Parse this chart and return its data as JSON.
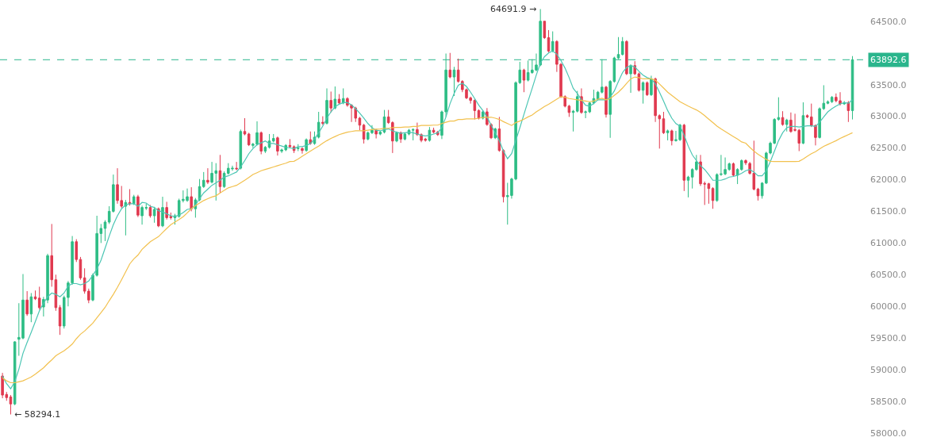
{
  "chart_data": {
    "type": "candlestick",
    "categories": [
      null,
      null,
      null,
      null,
      null,
      null,
      null,
      null,
      null,
      null,
      null,
      null,
      null,
      null,
      null,
      null,
      null,
      null,
      null,
      null,
      null,
      null,
      null,
      null,
      null,
      null,
      null,
      null,
      null,
      null,
      null,
      null,
      null,
      null,
      null,
      null,
      null,
      null,
      null,
      null,
      null,
      null,
      null,
      null,
      null,
      null,
      null,
      null,
      null,
      null,
      null,
      null,
      null,
      null,
      null,
      null,
      null,
      null,
      null,
      null,
      null,
      null,
      null,
      null,
      null,
      null,
      null,
      null,
      null,
      null,
      null,
      null,
      null,
      null,
      null,
      null,
      null,
      null,
      null,
      null,
      null,
      null,
      null,
      null,
      null,
      null,
      null,
      null,
      null,
      null,
      null,
      null,
      null,
      null,
      null,
      null,
      null,
      null,
      null,
      null,
      null,
      null,
      null,
      null,
      null,
      null,
      null,
      null,
      null,
      null,
      null,
      null,
      null,
      null,
      null,
      null,
      null,
      null,
      null,
      null,
      null,
      null,
      null,
      null,
      null,
      null,
      null,
      null,
      null,
      null,
      null,
      null,
      null,
      null,
      null,
      null,
      null,
      null,
      null,
      null,
      null,
      null,
      null,
      null,
      null,
      null,
      null,
      null,
      null,
      null,
      null,
      null,
      null,
      null,
      null,
      null,
      null,
      null,
      null,
      null,
      null,
      null,
      null,
      null,
      null,
      null,
      null,
      null,
      null,
      null,
      null,
      null,
      null,
      null,
      null,
      null,
      null,
      null,
      null,
      null,
      null,
      null,
      null,
      null,
      null,
      null,
      null,
      null,
      null,
      null,
      null,
      null,
      null,
      null,
      null,
      null,
      null,
      null,
      null,
      null,
      null,
      null,
      null,
      null,
      null,
      null,
      null,
      null
    ],
    "ohlc": [
      [
        58900,
        58950,
        58550,
        58600
      ],
      [
        58610,
        58650,
        58510,
        58560
      ],
      [
        58570,
        58600,
        58294.1,
        58460
      ],
      [
        58460,
        59450,
        58440,
        59440
      ],
      [
        59480,
        60050,
        59220,
        59510
      ],
      [
        59500,
        60510,
        59480,
        60100
      ],
      [
        60100,
        60240,
        59850,
        59880
      ],
      [
        59880,
        60210,
        59750,
        60150
      ],
      [
        60150,
        60250,
        60100,
        60120
      ],
      [
        60130,
        60310,
        59950,
        59980
      ],
      [
        59990,
        60150,
        59840,
        60110
      ],
      [
        60100,
        60830,
        60050,
        60800
      ],
      [
        60800,
        61300,
        60310,
        60420
      ],
      [
        60420,
        60500,
        59930,
        59980
      ],
      [
        59980,
        60020,
        59550,
        59690
      ],
      [
        59690,
        60170,
        59650,
        60140
      ],
      [
        60140,
        60400,
        60000,
        60370
      ],
      [
        60370,
        61110,
        60340,
        61020
      ],
      [
        61020,
        61060,
        60700,
        60740
      ],
      [
        60740,
        60780,
        60420,
        60450
      ],
      [
        60450,
        60600,
        60200,
        60240
      ],
      [
        60240,
        60280,
        60050,
        60100
      ],
      [
        60100,
        60520,
        60080,
        60490
      ],
      [
        60490,
        61430,
        60470,
        61150
      ],
      [
        61150,
        61300,
        61000,
        61230
      ],
      [
        61230,
        61360,
        61030,
        61330
      ],
      [
        61330,
        61580,
        61300,
        61500
      ],
      [
        61500,
        62080,
        61480,
        61920
      ],
      [
        61920,
        62180,
        61620,
        61670
      ],
      [
        61670,
        61900,
        61550,
        61580
      ],
      [
        61580,
        61680,
        61120,
        61640
      ],
      [
        61640,
        61850,
        61590,
        61620
      ],
      [
        61620,
        61760,
        61600,
        61730
      ],
      [
        61730,
        61760,
        61410,
        61440
      ],
      [
        61430,
        61590,
        61290,
        61560
      ],
      [
        61550,
        61620,
        61520,
        61560
      ],
      [
        61560,
        61600,
        61400,
        61430
      ],
      [
        61430,
        61570,
        61320,
        61530
      ],
      [
        61540,
        61560,
        61250,
        61270
      ],
      [
        61270,
        61730,
        61250,
        61560
      ],
      [
        61560,
        61650,
        61370,
        61400
      ],
      [
        61420,
        61480,
        61370,
        61400
      ],
      [
        61400,
        61460,
        61290,
        61430
      ],
      [
        61420,
        61700,
        61400,
        61670
      ],
      [
        61670,
        61830,
        61640,
        61690
      ],
      [
        61670,
        61860,
        61650,
        61730
      ],
      [
        61730,
        61880,
        61500,
        61540
      ],
      [
        61540,
        61710,
        61400,
        61680
      ],
      [
        61680,
        62010,
        61660,
        61890
      ],
      [
        61890,
        62120,
        61870,
        61990
      ],
      [
        61990,
        62180,
        61930,
        61960
      ],
      [
        61960,
        62280,
        61940,
        62100
      ],
      [
        62100,
        62260,
        61670,
        62140
      ],
      [
        62140,
        62390,
        61790,
        61890
      ],
      [
        61890,
        62130,
        61870,
        62100
      ],
      [
        62100,
        62260,
        62080,
        62180
      ],
      [
        62170,
        62220,
        62140,
        62180
      ],
      [
        62180,
        62280,
        62150,
        62170
      ],
      [
        62180,
        62790,
        62160,
        62760
      ],
      [
        62760,
        62970,
        62700,
        62720
      ],
      [
        62720,
        62740,
        62530,
        62550
      ],
      [
        62540,
        62580,
        62500,
        62560
      ],
      [
        62560,
        62920,
        62540,
        62740
      ],
      [
        62740,
        62760,
        62400,
        62450
      ],
      [
        62450,
        62530,
        62420,
        62510
      ],
      [
        62510,
        62720,
        62490,
        62610
      ],
      [
        62610,
        62720,
        62590,
        62650
      ],
      [
        62660,
        62680,
        62380,
        62450
      ],
      [
        62450,
        62490,
        62420,
        62470
      ],
      [
        62470,
        62560,
        62450,
        62540
      ],
      [
        62540,
        62640,
        62500,
        62520
      ],
      [
        62520,
        62540,
        62420,
        62460
      ],
      [
        62490,
        62560,
        62450,
        62500
      ],
      [
        62490,
        62510,
        62410,
        62460
      ],
      [
        62460,
        62650,
        62440,
        62630
      ],
      [
        62630,
        62760,
        62550,
        62570
      ],
      [
        62570,
        62760,
        62550,
        62670
      ],
      [
        62670,
        63070,
        62650,
        62905
      ],
      [
        62905,
        63000,
        62860,
        62890
      ],
      [
        62890,
        63440,
        62870,
        63250
      ],
      [
        63250,
        63390,
        63060,
        63130
      ],
      [
        63130,
        63470,
        63110,
        63270
      ],
      [
        63270,
        63350,
        63190,
        63210
      ],
      [
        63210,
        63440,
        63190,
        63280
      ],
      [
        63280,
        63300,
        63150,
        63175
      ],
      [
        63175,
        63190,
        62910,
        63130
      ],
      [
        63130,
        63150,
        62910,
        62970
      ],
      [
        62970,
        62990,
        62780,
        62860
      ],
      [
        62860,
        62880,
        62570,
        62640
      ],
      [
        62640,
        62760,
        62620,
        62740
      ],
      [
        62740,
        62860,
        62720,
        62780
      ],
      [
        62780,
        62800,
        62650,
        62720
      ],
      [
        62720,
        62770,
        62700,
        62750
      ],
      [
        62750,
        63100,
        62730,
        62990
      ],
      [
        62990,
        63100,
        62880,
        62900
      ],
      [
        62900,
        62920,
        62420,
        62610
      ],
      [
        62610,
        62760,
        62590,
        62740
      ],
      [
        62740,
        62760,
        62580,
        62640
      ],
      [
        62640,
        62740,
        62620,
        62720
      ],
      [
        62720,
        62800,
        62700,
        62780
      ],
      [
        62780,
        62810,
        62620,
        62790
      ],
      [
        62790,
        62900,
        62690,
        62710
      ],
      [
        62710,
        62730,
        62590,
        62620
      ],
      [
        62640,
        62660,
        62600,
        62620
      ],
      [
        62620,
        62830,
        62600,
        62780
      ],
      [
        62780,
        62820,
        62730,
        62750
      ],
      [
        62750,
        62770,
        62690,
        62710
      ],
      [
        62700,
        63090,
        62640,
        63070
      ],
      [
        63070,
        63990,
        62990,
        63730
      ],
      [
        63730,
        64000,
        63600,
        63620
      ],
      [
        63620,
        63780,
        63320,
        63730
      ],
      [
        63730,
        63910,
        63530,
        63550
      ],
      [
        63550,
        63570,
        63380,
        63420
      ],
      [
        63420,
        63440,
        63270,
        63290
      ],
      [
        63290,
        63310,
        63200,
        63250
      ],
      [
        63250,
        63270,
        62950,
        63090
      ],
      [
        63090,
        63110,
        62950,
        62970
      ],
      [
        62970,
        63090,
        62950,
        63070
      ],
      [
        63070,
        63130,
        62850,
        62870
      ],
      [
        62870,
        62890,
        62640,
        62660
      ],
      [
        62660,
        62820,
        62640,
        62800
      ],
      [
        62800,
        62990,
        62440,
        62460
      ],
      [
        62460,
        62480,
        61640,
        61730
      ],
      [
        61730,
        61950,
        61290,
        61750
      ],
      [
        61750,
        62030,
        61700,
        62010
      ],
      [
        62010,
        63550,
        61990,
        63530
      ],
      [
        63530,
        63860,
        63510,
        63730
      ],
      [
        63730,
        63750,
        63380,
        63570
      ],
      [
        63570,
        63880,
        63550,
        63690
      ],
      [
        63690,
        63900,
        63670,
        63730
      ],
      [
        63730,
        63990,
        63710,
        63810
      ],
      [
        63810,
        64691.9,
        63790,
        64500
      ],
      [
        64500,
        64500,
        64220,
        64240
      ],
      [
        64240,
        64360,
        64010,
        64030
      ],
      [
        64030,
        64340,
        64010,
        64180
      ],
      [
        64180,
        64200,
        63700,
        63820
      ],
      [
        63820,
        63840,
        63290,
        63310
      ],
      [
        63310,
        63330,
        63140,
        63160
      ],
      [
        63160,
        63180,
        62990,
        63060
      ],
      [
        63060,
        63100,
        62760,
        63080
      ],
      [
        63080,
        63400,
        63060,
        63310
      ],
      [
        63310,
        63440,
        63040,
        63060
      ],
      [
        63060,
        63090,
        62970,
        63070
      ],
      [
        63070,
        63230,
        63050,
        63210
      ],
      [
        63210,
        63420,
        63190,
        63280
      ],
      [
        63270,
        63400,
        63250,
        63380
      ],
      [
        63380,
        63900,
        63360,
        63460
      ],
      [
        63460,
        63480,
        62980,
        63030
      ],
      [
        63030,
        63570,
        62660,
        63550
      ],
      [
        63550,
        63940,
        63530,
        63920
      ],
      [
        63920,
        64250,
        63900,
        63975
      ],
      [
        63975,
        64250,
        63960,
        64180
      ],
      [
        64180,
        64200,
        63650,
        63670
      ],
      [
        63670,
        63820,
        63370,
        63800
      ],
      [
        63800,
        63870,
        63650,
        63670
      ],
      [
        63670,
        63690,
        63390,
        63410
      ],
      [
        63410,
        63550,
        63200,
        63530
      ],
      [
        63530,
        63550,
        63320,
        63340
      ],
      [
        63340,
        63640,
        63320,
        63590
      ],
      [
        63590,
        63610,
        62910,
        63010
      ],
      [
        63010,
        63030,
        62490,
        62960
      ],
      [
        62960,
        63070,
        62720,
        62740
      ],
      [
        62740,
        62790,
        62620,
        62770
      ],
      [
        62770,
        62790,
        62540,
        62615
      ],
      [
        62615,
        62770,
        62600,
        62630
      ],
      [
        62630,
        62880,
        62610,
        62860
      ],
      [
        62860,
        62880,
        61820,
        61990
      ],
      [
        61990,
        62060,
        61720,
        62040
      ],
      [
        62040,
        62180,
        61860,
        62160
      ],
      [
        62160,
        62390,
        62140,
        62280
      ],
      [
        62280,
        62390,
        61900,
        61935
      ],
      [
        61940,
        61970,
        61600,
        61930
      ],
      [
        61935,
        61950,
        61620,
        61860
      ],
      [
        61860,
        61880,
        61540,
        61670
      ],
      [
        61670,
        62100,
        61650,
        62080
      ],
      [
        62080,
        62390,
        62060,
        62090
      ],
      [
        62090,
        62350,
        62070,
        62160
      ],
      [
        62160,
        62270,
        62140,
        62250
      ],
      [
        62250,
        62270,
        62050,
        62070
      ],
      [
        62070,
        62180,
        61930,
        62160
      ],
      [
        62160,
        62320,
        62140,
        62300
      ],
      [
        62300,
        62320,
        62230,
        62265
      ],
      [
        62255,
        62280,
        62080,
        62100
      ],
      [
        62100,
        62615,
        61830,
        61850
      ],
      [
        61850,
        61870,
        61670,
        61745
      ],
      [
        61745,
        61960,
        61700,
        61945
      ],
      [
        61945,
        62440,
        61930,
        62420
      ],
      [
        62420,
        62600,
        62400,
        62575
      ],
      [
        62575,
        62970,
        62560,
        62950
      ],
      [
        62950,
        63300,
        62930,
        62980
      ],
      [
        62980,
        63080,
        62850,
        62870
      ],
      [
        62870,
        62960,
        62760,
        62940
      ],
      [
        62940,
        63060,
        62740,
        62760
      ],
      [
        62790,
        63040,
        62760,
        62780
      ],
      [
        62780,
        62800,
        62450,
        62575
      ],
      [
        62575,
        63220,
        62560,
        63010
      ],
      [
        63010,
        63030,
        62970,
        62990
      ],
      [
        62990,
        63200,
        62830,
        62855
      ],
      [
        62855,
        62870,
        62540,
        62665
      ],
      [
        62665,
        63140,
        62650,
        63120
      ],
      [
        63120,
        63490,
        63100,
        63205
      ],
      [
        63205,
        63250,
        63190,
        63230
      ],
      [
        63230,
        63320,
        63210,
        63300
      ],
      [
        63300,
        63360,
        63220,
        63245
      ],
      [
        63245,
        63380,
        63170,
        63195
      ],
      [
        63195,
        63240,
        63180,
        63215
      ],
      [
        63215,
        63240,
        62910,
        63090
      ],
      [
        63090,
        63950,
        62950,
        63892.6
      ]
    ],
    "series": [
      {
        "type": "line",
        "color": "#4cc6b4",
        "values": [
          58900,
          58780,
          58700,
          58810,
          59010,
          59260,
          59430,
          59590,
          59760,
          59930,
          60050,
          60150,
          60210,
          60190,
          60150,
          60210,
          60320,
          60360,
          60360,
          60340,
          60360,
          60400,
          60490,
          60590,
          60730,
          60920,
          61110,
          61290,
          61430,
          61540,
          61600,
          61620,
          61620,
          61580,
          61640,
          61630,
          61580,
          61560,
          61510,
          61490,
          61460,
          61430,
          61420,
          61440,
          61480,
          61530,
          61540,
          61600,
          61700,
          61790,
          61850,
          61910,
          61950,
          61990,
          62040,
          62060,
          62090,
          62120,
          62200,
          62300,
          62410,
          62490,
          62550,
          62580,
          62610,
          62570,
          62570,
          62550,
          62530,
          62510,
          62500,
          62490,
          62520,
          62520,
          62540,
          62570,
          62640,
          62740,
          62845,
          62970,
          63070,
          63150,
          63190,
          63215,
          63215,
          63180,
          63120,
          63050,
          62970,
          62885,
          62820,
          62780,
          62770,
          62790,
          62800,
          62770,
          62750,
          62730,
          62740,
          62750,
          62740,
          62720,
          62700,
          62690,
          62700,
          62720,
          62740,
          62820,
          62990,
          63200,
          63360,
          63490,
          63520,
          63470,
          63380,
          63280,
          63175,
          63090,
          62990,
          62860,
          62740,
          62615,
          62450,
          62330,
          62410,
          62615,
          62820,
          63030,
          63240,
          63440,
          63650,
          63840,
          63940,
          64000,
          64030,
          63980,
          63880,
          63760,
          63610,
          63440,
          63360,
          63260,
          63175,
          63160,
          63200,
          63260,
          63260,
          63260,
          63300,
          63400,
          63550,
          63690,
          63770,
          63800,
          63780,
          63710,
          63650,
          63610,
          63590,
          63510,
          63380,
          63240,
          63090,
          62970,
          62885,
          62845,
          62700,
          62530,
          62390,
          62300,
          62220,
          62160,
          62080,
          61990,
          61990,
          61990,
          62010,
          62040,
          62050,
          62070,
          62100,
          62140,
          62160,
          62120,
          62060,
          62060,
          62140,
          62285,
          62450,
          62615,
          62740,
          62820,
          62840,
          62840,
          62830,
          62840,
          62850,
          62850,
          62840,
          62905,
          62990,
          63070,
          63120,
          63160,
          63195,
          63215,
          63205,
          63260
        ]
      },
      {
        "type": "line",
        "color": "#f2c14e",
        "values": [
          58870,
          58825,
          58795,
          58795,
          58810,
          58825,
          58855,
          58885,
          58930,
          58980,
          59030,
          59095,
          59155,
          59220,
          59260,
          59300,
          59350,
          59405,
          59490,
          59560,
          59610,
          59675,
          59735,
          59820,
          59900,
          59985,
          60090,
          60190,
          60300,
          60420,
          60545,
          60670,
          60750,
          60810,
          60900,
          60960,
          61020,
          61060,
          61100,
          61165,
          61230,
          61290,
          61330,
          61370,
          61415,
          61475,
          61540,
          61590,
          61630,
          61670,
          61700,
          61725,
          61745,
          61790,
          61830,
          61870,
          61890,
          61910,
          61950,
          61990,
          62035,
          62080,
          62110,
          62140,
          62160,
          62180,
          62200,
          62220,
          62240,
          62260,
          62285,
          62290,
          62325,
          62370,
          62410,
          62450,
          62490,
          62530,
          62575,
          62615,
          62650,
          62680,
          62710,
          62730,
          62750,
          62760,
          62770,
          62770,
          62770,
          62780,
          62790,
          62795,
          62800,
          62810,
          62810,
          62820,
          62825,
          62825,
          62830,
          62830,
          62840,
          62840,
          62855,
          62855,
          62855,
          62860,
          62860,
          62885,
          62905,
          62925,
          62925,
          62950,
          62950,
          62960,
          62960,
          62960,
          62970,
          62980,
          62985,
          62985,
          62970,
          62950,
          62915,
          62885,
          62855,
          62900,
          62925,
          62955,
          62990,
          63020,
          63070,
          63110,
          63155,
          63190,
          63230,
          63270,
          63310,
          63300,
          63280,
          63270,
          63260,
          63250,
          63240,
          63230,
          63240,
          63270,
          63285,
          63260,
          63280,
          63330,
          63380,
          63445,
          63520,
          63590,
          63620,
          63610,
          63590,
          63590,
          63590,
          63570,
          63510,
          63445,
          63380,
          63330,
          63280,
          63230,
          63195,
          63160,
          63130,
          63100,
          63060,
          63010,
          62955,
          62900,
          62845,
          62800,
          62760,
          62720,
          62680,
          62640,
          62595,
          62575,
          62510,
          62450,
          62400,
          62360,
          62320,
          62290,
          62285,
          62285,
          62285,
          62285,
          62285,
          62285,
          62290,
          62325,
          62370,
          62410,
          62440,
          62485,
          62525,
          62555,
          62585,
          62615,
          62650,
          62680,
          62710,
          62740
        ]
      }
    ],
    "ylim": [
      57900,
      64810
    ],
    "yticks": [
      {
        "value": 58000,
        "label": "58000.0"
      },
      {
        "value": 58500,
        "label": "58500.0"
      },
      {
        "value": 59000,
        "label": "59000.0"
      },
      {
        "value": 59500,
        "label": "59500.0"
      },
      {
        "value": 60000,
        "label": "60000.0"
      },
      {
        "value": 60500,
        "label": "60500.0"
      },
      {
        "value": 61000,
        "label": "61000.0"
      },
      {
        "value": 61500,
        "label": "61500.0"
      },
      {
        "value": 62000,
        "label": "62000.0"
      },
      {
        "value": 62500,
        "label": "62500.0"
      },
      {
        "value": 63000,
        "label": "63000.0"
      },
      {
        "value": 63500,
        "label": "63500.0"
      },
      {
        "value": 64500,
        "label": "64500.0"
      }
    ],
    "ref_lines": [
      {
        "axis": "y",
        "value": 63892.6,
        "label": "63892.6",
        "color": "#2ab58c",
        "line_style": "dashed"
      }
    ],
    "annotations": [
      "64691.9 →",
      "← 58294.1"
    ],
    "tick_labels": "y",
    "grid": false
  }
}
